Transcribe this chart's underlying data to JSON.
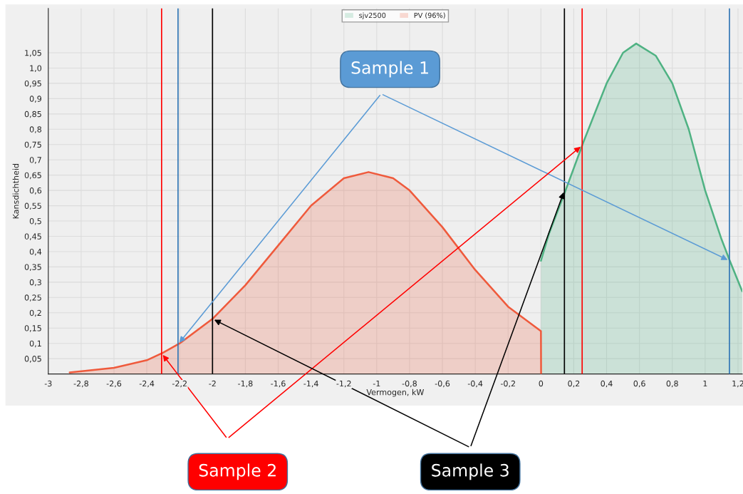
{
  "chart_data": {
    "type": "area",
    "xlabel": "Vermogen, kW",
    "ylabel": "Kansdichtheid",
    "series": [
      {
        "name": "sjv2500",
        "color": "#4fb283",
        "x": [
          0,
          0.05,
          0.15,
          0.26,
          0.4,
          0.5,
          0.58,
          0.7,
          0.8,
          0.9,
          1.0,
          1.1,
          1.15,
          1.226
        ],
        "values": [
          0.37,
          0.46,
          0.6,
          0.76,
          0.95,
          1.05,
          1.08,
          1.04,
          0.95,
          0.8,
          0.6,
          0.44,
          0.37,
          0.27
        ]
      },
      {
        "name": "PV (96%)",
        "color": "#ef5a3c",
        "x": [
          -2.87,
          -2.6,
          -2.4,
          -2.3,
          -2.2,
          -2.0,
          -1.8,
          -1.6,
          -1.4,
          -1.2,
          -1.05,
          -0.9,
          -0.8,
          -0.6,
          -0.4,
          -0.2,
          0,
          0.001
        ],
        "values": [
          0.005,
          0.02,
          0.045,
          0.07,
          0.1,
          0.18,
          0.29,
          0.42,
          0.55,
          0.64,
          0.66,
          0.64,
          0.6,
          0.48,
          0.34,
          0.22,
          0.14,
          0
        ]
      }
    ],
    "xlim": [
      -3,
      1.226
    ],
    "ylim": [
      0,
      1.195
    ],
    "xticks": [
      -3,
      {
        "value": -2.8,
        "label": "-2,8"
      },
      {
        "value": -2.6,
        "label": "-2,6"
      },
      {
        "value": -2.4,
        "label": "-2,4"
      },
      {
        "value": -2.2,
        "label": "-2,2"
      },
      -2,
      {
        "value": -1.8,
        "label": "-1,8"
      },
      {
        "value": -1.6,
        "label": "-1,6"
      },
      {
        "value": -1.4,
        "label": "-1,4"
      },
      {
        "value": -1.2,
        "label": "-1,2"
      },
      -1,
      {
        "value": -0.8,
        "label": "-0,8"
      },
      {
        "value": -0.6,
        "label": "-0,6"
      },
      {
        "value": -0.4,
        "label": "-0,4"
      },
      {
        "value": -0.2,
        "label": "-0,2"
      },
      0,
      {
        "value": 0.2,
        "label": "0,2"
      },
      {
        "value": 0.4,
        "label": "0,4"
      },
      {
        "value": 0.6,
        "label": "0,6"
      },
      {
        "value": 0.8,
        "label": "0,8"
      },
      1,
      {
        "value": 1.2,
        "label": "1,2"
      }
    ],
    "yticks": [
      {
        "value": 0.05,
        "label": "0,05"
      },
      {
        "value": 0.1,
        "label": "0,1"
      },
      {
        "value": 0.15,
        "label": "0,15"
      },
      {
        "value": 0.2,
        "label": "0,2"
      },
      {
        "value": 0.25,
        "label": "0,25"
      },
      {
        "value": 0.3,
        "label": "0,3"
      },
      {
        "value": 0.35,
        "label": "0,35"
      },
      {
        "value": 0.4,
        "label": "0,4"
      },
      {
        "value": 0.45,
        "label": "0,45"
      },
      {
        "value": 0.5,
        "label": "0,5"
      },
      {
        "value": 0.55,
        "label": "0,55"
      },
      {
        "value": 0.6,
        "label": "0,6"
      },
      {
        "value": 0.65,
        "label": "0,65"
      },
      {
        "value": 0.7,
        "label": "0,7"
      },
      {
        "value": 0.75,
        "label": "0,75"
      },
      {
        "value": 0.8,
        "label": "0,8"
      },
      {
        "value": 0.85,
        "label": "0,85"
      },
      {
        "value": 0.9,
        "label": "0,9"
      },
      {
        "value": 0.95,
        "label": "0,95"
      },
      {
        "value": 1.0,
        "label": "1,0"
      },
      {
        "value": 1.05,
        "label": "1,05"
      }
    ],
    "ref_lines": [
      {
        "axis": "x",
        "value": -2.21,
        "color": "#2f75b5"
      },
      {
        "axis": "x",
        "value": 1.148,
        "color": "#2f75b5"
      },
      {
        "axis": "x",
        "value": -2.31,
        "color": "#ff0000"
      },
      {
        "axis": "x",
        "value": 0.251,
        "color": "#ff0000"
      },
      {
        "axis": "x",
        "value": -2.0,
        "color": "#000000"
      },
      {
        "axis": "x",
        "value": 0.143,
        "color": "#000000"
      }
    ],
    "annotations": [
      {
        "text": "Sample 1",
        "x": 1.148,
        "y": 0.37
      },
      "Sample 2",
      {
        "text": "Sample 3",
        "x": 0.143,
        "y": 0.6
      }
    ],
    "grid": true,
    "legend": "top"
  }
}
